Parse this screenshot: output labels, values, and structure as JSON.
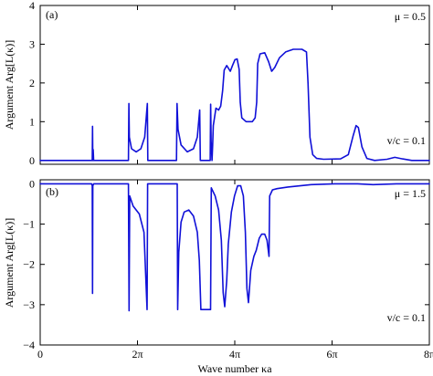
{
  "chart_data": [
    {
      "type": "line",
      "panel_label": "(a)",
      "ylabel": "Argument Arg[L(κ)]",
      "annotations": [
        "μ = 0.5",
        "v/c = 0.1"
      ],
      "xlim": [
        0,
        25.1327
      ],
      "ylim": [
        -0.1,
        4
      ],
      "x_ticks": [
        {
          "value": 0,
          "label": ""
        },
        {
          "value": 6.2832,
          "label": ""
        },
        {
          "value": 12.5664,
          "label": ""
        },
        {
          "value": 18.8496,
          "label": ""
        },
        {
          "value": 25.1327,
          "label": ""
        }
      ],
      "y_ticks": [
        {
          "value": 0,
          "label": "0"
        },
        {
          "value": 1,
          "label": "1"
        },
        {
          "value": 2,
          "label": "2"
        },
        {
          "value": 3,
          "label": "3"
        },
        {
          "value": 4,
          "label": "4"
        }
      ],
      "series": [
        {
          "color": "#1010d8",
          "points": [
            [
              0,
              0
            ],
            [
              3.32,
              0
            ],
            [
              3.36,
              0
            ],
            [
              3.38,
              0.88
            ],
            [
              3.4,
              0
            ],
            [
              3.42,
              0.28
            ],
            [
              3.45,
              0
            ],
            [
              5.7,
              0
            ],
            [
              5.73,
              1.47
            ],
            [
              5.76,
              0.6
            ],
            [
              5.9,
              0.3
            ],
            [
              6.2,
              0.22
            ],
            [
              6.5,
              0.3
            ],
            [
              6.75,
              0.6
            ],
            [
              6.92,
              1.47
            ],
            [
              6.95,
              0
            ],
            [
              7.05,
              0
            ],
            [
              8.8,
              0
            ],
            [
              8.84,
              1.47
            ],
            [
              8.9,
              0.8
            ],
            [
              9.1,
              0.4
            ],
            [
              9.5,
              0.22
            ],
            [
              9.9,
              0.3
            ],
            [
              10.15,
              0.6
            ],
            [
              10.3,
              1.3
            ],
            [
              10.34,
              0
            ],
            [
              10.98,
              0
            ],
            [
              11.01,
              1.45
            ],
            [
              11.04,
              0.5
            ],
            [
              11.1,
              0
            ],
            [
              11.14,
              0.4
            ],
            [
              11.18,
              0.9
            ],
            [
              11.35,
              1.35
            ],
            [
              11.52,
              1.3
            ],
            [
              11.66,
              1.4
            ],
            [
              11.78,
              1.8
            ],
            [
              11.88,
              2.33
            ],
            [
              12.05,
              2.45
            ],
            [
              12.28,
              2.3
            ],
            [
              12.42,
              2.45
            ],
            [
              12.58,
              2.6
            ],
            [
              12.72,
              2.62
            ],
            [
              12.85,
              2.35
            ],
            [
              12.92,
              1.5
            ],
            [
              13.02,
              1.1
            ],
            [
              13.3,
              1.0
            ],
            [
              13.7,
              1.0
            ],
            [
              13.88,
              1.1
            ],
            [
              13.98,
              1.5
            ],
            [
              14.05,
              2.5
            ],
            [
              14.2,
              2.75
            ],
            [
              14.5,
              2.78
            ],
            [
              14.75,
              2.55
            ],
            [
              14.95,
              2.3
            ],
            [
              15.15,
              2.4
            ],
            [
              15.45,
              2.65
            ],
            [
              15.85,
              2.8
            ],
            [
              16.35,
              2.87
            ],
            [
              16.9,
              2.87
            ],
            [
              17.2,
              2.8
            ],
            [
              17.3,
              2.0
            ],
            [
              17.42,
              0.6
            ],
            [
              17.6,
              0.15
            ],
            [
              17.85,
              0.05
            ],
            [
              18.3,
              0.03
            ],
            [
              19.4,
              0.04
            ],
            [
              19.9,
              0.15
            ],
            [
              20.2,
              0.62
            ],
            [
              20.4,
              0.9
            ],
            [
              20.55,
              0.85
            ],
            [
              20.78,
              0.35
            ],
            [
              21.1,
              0.05
            ],
            [
              21.6,
              0
            ],
            [
              22.4,
              0.03
            ],
            [
              22.9,
              0.08
            ],
            [
              23.4,
              0.04
            ],
            [
              24.0,
              0
            ],
            [
              25.1327,
              0
            ]
          ]
        }
      ]
    },
    {
      "type": "line",
      "panel_label": "(b)",
      "ylabel": "Argument Arg[L(κ)]",
      "xlabel": "Wave number κa",
      "annotations": [
        "μ = 1.5",
        "v/c = 0.1"
      ],
      "xlim": [
        0,
        25.1327
      ],
      "ylim": [
        -4,
        0.1
      ],
      "x_ticks": [
        {
          "value": 0,
          "label": "0"
        },
        {
          "value": 6.2832,
          "label": "2π"
        },
        {
          "value": 12.5664,
          "label": "4π"
        },
        {
          "value": 18.8496,
          "label": "6π"
        },
        {
          "value": 25.1327,
          "label": "8π"
        }
      ],
      "y_ticks": [
        {
          "value": 0,
          "label": "0"
        },
        {
          "value": -1,
          "label": "−1"
        },
        {
          "value": -2,
          "label": "−2"
        },
        {
          "value": -3,
          "label": "−3"
        },
        {
          "value": -4,
          "label": "−4"
        }
      ],
      "series": [
        {
          "color": "#1010d8",
          "points": [
            [
              0,
              0
            ],
            [
              3.32,
              0
            ],
            [
              3.36,
              -0.05
            ],
            [
              3.38,
              -2.72
            ],
            [
              3.4,
              -0.05
            ],
            [
              3.45,
              0
            ],
            [
              5.7,
              0
            ],
            [
              5.74,
              -3.15
            ],
            [
              5.78,
              -0.3
            ],
            [
              6.0,
              -0.55
            ],
            [
              6.4,
              -0.75
            ],
            [
              6.7,
              -1.2
            ],
            [
              6.9,
              -3.12
            ],
            [
              6.94,
              0
            ],
            [
              8.85,
              0
            ],
            [
              8.88,
              -3.12
            ],
            [
              8.95,
              -1.7
            ],
            [
              9.1,
              -0.95
            ],
            [
              9.3,
              -0.7
            ],
            [
              9.6,
              -0.65
            ],
            [
              9.9,
              -0.8
            ],
            [
              10.15,
              -1.2
            ],
            [
              10.28,
              -1.9
            ],
            [
              10.38,
              -3.12
            ],
            [
              11.0,
              -3.12
            ],
            [
              11.05,
              -0.1
            ],
            [
              11.3,
              -0.3
            ],
            [
              11.52,
              -0.65
            ],
            [
              11.7,
              -1.4
            ],
            [
              11.82,
              -2.7
            ],
            [
              11.92,
              -3.05
            ],
            [
              12.05,
              -2.4
            ],
            [
              12.15,
              -1.5
            ],
            [
              12.35,
              -0.7
            ],
            [
              12.55,
              -0.3
            ],
            [
              12.75,
              -0.05
            ],
            [
              12.95,
              -0.05
            ],
            [
              13.12,
              -0.3
            ],
            [
              13.25,
              -1.2
            ],
            [
              13.35,
              -2.6
            ],
            [
              13.45,
              -2.95
            ],
            [
              13.6,
              -2.15
            ],
            [
              13.8,
              -1.8
            ],
            [
              13.95,
              -1.65
            ],
            [
              14.15,
              -1.35
            ],
            [
              14.3,
              -1.25
            ],
            [
              14.5,
              -1.25
            ],
            [
              14.65,
              -1.4
            ],
            [
              14.78,
              -1.8
            ],
            [
              14.82,
              -0.3
            ],
            [
              15.0,
              -0.15
            ],
            [
              15.3,
              -0.12
            ],
            [
              16.0,
              -0.08
            ],
            [
              16.5,
              -0.06
            ],
            [
              17.5,
              -0.02
            ],
            [
              19.0,
              0
            ],
            [
              20.5,
              0
            ],
            [
              21.5,
              -0.02
            ],
            [
              23.0,
              0
            ],
            [
              25.1327,
              0
            ]
          ]
        }
      ]
    }
  ]
}
